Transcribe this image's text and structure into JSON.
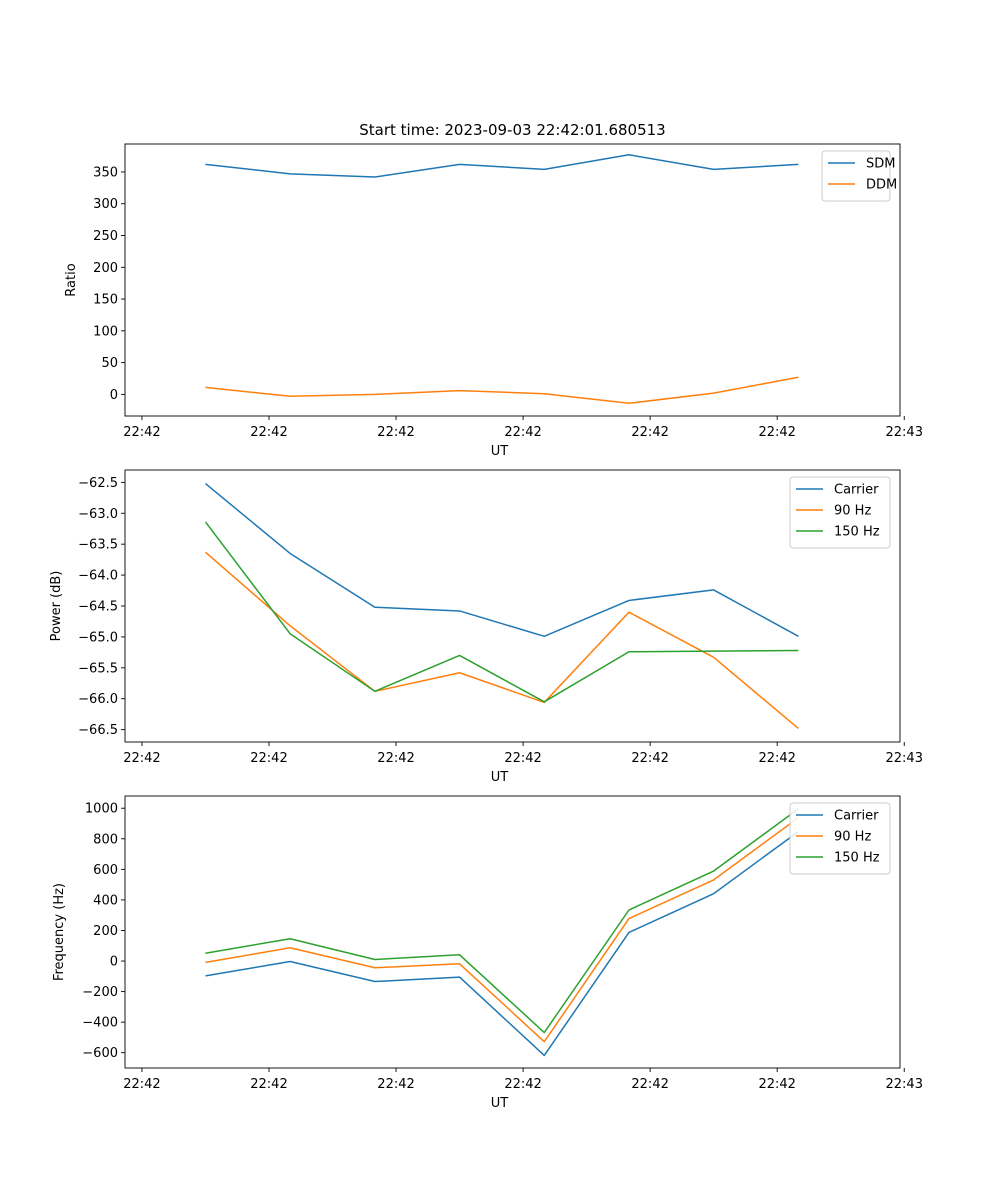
{
  "chart_data": [
    {
      "type": "line",
      "title": "Start time: 2023-09-03 22:42:01.680513",
      "xlabel": "UT",
      "ylabel": "Ratio",
      "ylim": [
        -34,
        394
      ],
      "yticks": [
        0,
        50,
        100,
        150,
        200,
        250,
        300,
        350
      ],
      "xlim": [
        -0.2,
        8.95
      ],
      "xtick_positions": [
        0,
        1.5,
        3,
        4.5,
        6,
        7.5,
        9
      ],
      "xtick_labels": [
        "22:42",
        "22:42",
        "22:42",
        "22:42",
        "22:42",
        "22:42",
        "22:43"
      ],
      "x": [
        0.75,
        1.75,
        2.75,
        3.75,
        4.75,
        5.75,
        6.75,
        7.75
      ],
      "legend_position": "top-right",
      "series": [
        {
          "name": "SDM",
          "color": "#1f77b4",
          "values": [
            362,
            347,
            342,
            362,
            354,
            377,
            354,
            362
          ]
        },
        {
          "name": "DDM",
          "color": "#ff7f0e",
          "values": [
            11,
            -3,
            0,
            6,
            1,
            -14,
            2,
            27
          ]
        }
      ]
    },
    {
      "type": "line",
      "title": "",
      "xlabel": "UT",
      "ylabel": "Power (dB)",
      "ylim": [
        -66.7,
        -62.3
      ],
      "yticks": [
        -66.5,
        -66.0,
        -65.5,
        -65.0,
        -64.5,
        -64.0,
        -63.5,
        -63.0,
        -62.5
      ],
      "ytick_labels": [
        "−66.5",
        "−66.0",
        "−65.5",
        "−65.0",
        "−64.5",
        "−64.0",
        "−63.5",
        "−63.0",
        "−62.5"
      ],
      "xlim": [
        -0.2,
        8.95
      ],
      "xtick_positions": [
        0,
        1.5,
        3,
        4.5,
        6,
        7.5,
        9
      ],
      "xtick_labels": [
        "22:42",
        "22:42",
        "22:42",
        "22:42",
        "22:42",
        "22:42",
        "22:43"
      ],
      "x": [
        0.75,
        1.75,
        2.75,
        3.75,
        4.75,
        5.75,
        6.75,
        7.75
      ],
      "legend_position": "top-right",
      "series": [
        {
          "name": "Carrier",
          "color": "#1f77b4",
          "values": [
            -62.52,
            -63.65,
            -64.52,
            -64.58,
            -64.99,
            -64.41,
            -64.24,
            -64.99
          ]
        },
        {
          "name": "90 Hz",
          "color": "#ff7f0e",
          "values": [
            -63.63,
            -64.82,
            -65.88,
            -65.58,
            -66.06,
            -64.6,
            -65.33,
            -66.48
          ]
        },
        {
          "name": "150 Hz",
          "color": "#2ca02c",
          "values": [
            -63.14,
            -64.95,
            -65.88,
            -65.3,
            -66.05,
            -65.24,
            -65.23,
            -65.22
          ]
        }
      ]
    },
    {
      "type": "line",
      "title": "",
      "xlabel": "UT",
      "ylabel": "Frequency (Hz)",
      "ylim": [
        -700,
        1080
      ],
      "yticks": [
        -600,
        -400,
        -200,
        0,
        200,
        400,
        600,
        800,
        1000
      ],
      "ytick_labels": [
        "−600",
        "−400",
        "−200",
        "0",
        "200",
        "400",
        "600",
        "800",
        "1000"
      ],
      "xlim": [
        -0.2,
        8.95
      ],
      "xtick_positions": [
        0,
        1.5,
        3,
        4.5,
        6,
        7.5,
        9
      ],
      "xtick_labels": [
        "22:42",
        "22:42",
        "22:42",
        "22:42",
        "22:42",
        "22:42",
        "22:43"
      ],
      "x": [
        0.75,
        1.75,
        2.75,
        3.75,
        4.75,
        5.75,
        6.75,
        7.75
      ],
      "legend_position": "top-right",
      "series": [
        {
          "name": "Carrier",
          "color": "#1f77b4",
          "values": [
            -97,
            -3,
            -134,
            -105,
            -618,
            187,
            441,
            847
          ]
        },
        {
          "name": "90 Hz",
          "color": "#ff7f0e",
          "values": [
            -9,
            87,
            -44,
            -18,
            -528,
            278,
            531,
            938
          ]
        },
        {
          "name": "150 Hz",
          "color": "#2ca02c",
          "values": [
            51,
            146,
            10,
            41,
            -468,
            334,
            589,
            996
          ]
        }
      ]
    }
  ]
}
